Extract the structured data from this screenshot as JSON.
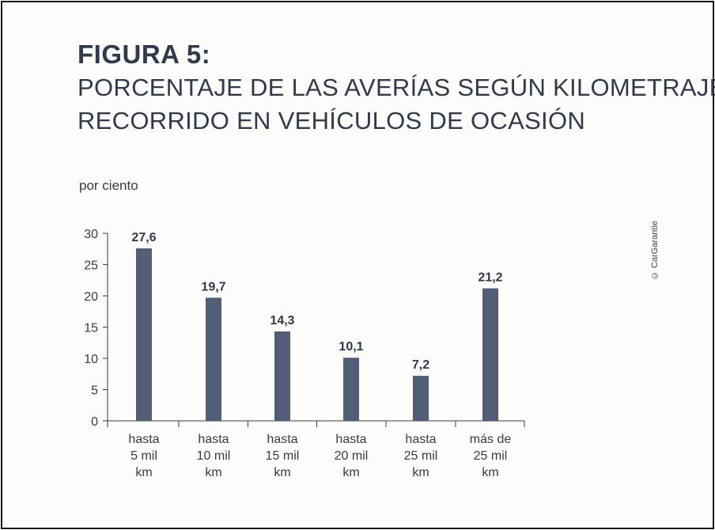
{
  "figure": {
    "label": "FIGURA 5:",
    "title_line1": "PORCENTAJE DE LAS AVERÍAS SEGÚN KILOMETRAJE",
    "title_line2": "RECORRIDO EN VEHÍCULOS DE OCASIÓN",
    "unit_label": "por ciento",
    "credit": "© CarGarantie"
  },
  "colors": {
    "bar": "#525e76",
    "text": "#303a4a",
    "axis": "#3c3c3c"
  },
  "chart_data": {
    "type": "bar",
    "title": "PORCENTAJE DE LAS AVERÍAS SEGÚN KILOMETRAJE RECORRIDO EN VEHÍCULOS DE OCASIÓN",
    "ylabel": "por ciento",
    "xlabel": "",
    "ylim": [
      0,
      30
    ],
    "yticks": [
      "0",
      "5",
      "10",
      "15",
      "20",
      "25",
      "30"
    ],
    "grid": false,
    "categories": [
      [
        "hasta",
        "5 mil",
        "km"
      ],
      [
        "hasta",
        "10 mil",
        "km"
      ],
      [
        "hasta",
        "15 mil",
        "km"
      ],
      [
        "hasta",
        "20 mil",
        "km"
      ],
      [
        "hasta",
        "25 mil",
        "km"
      ],
      [
        "más de",
        "25 mil",
        "km"
      ]
    ],
    "values": [
      27.6,
      19.7,
      14.3,
      10.1,
      7.2,
      21.2
    ],
    "value_labels": [
      "27,6",
      "19,7",
      "14,3",
      "10,1",
      "7,2",
      "21,2"
    ]
  }
}
